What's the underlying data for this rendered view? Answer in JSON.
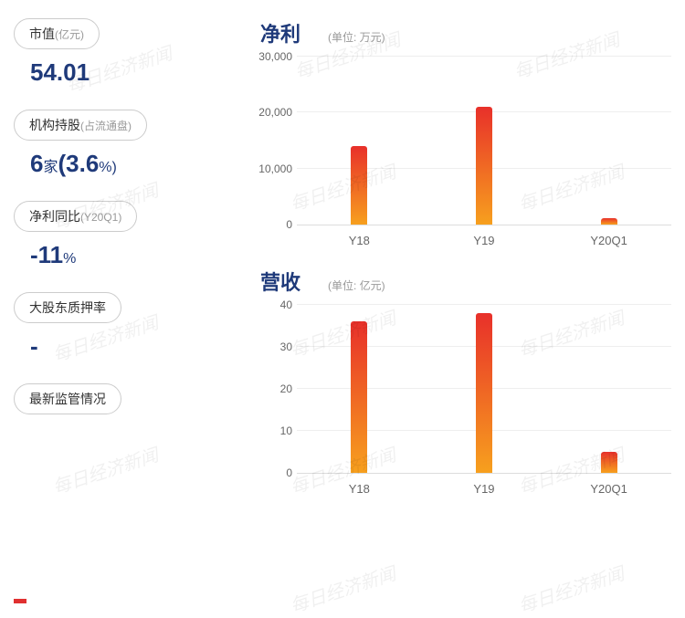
{
  "stats": {
    "market_cap": {
      "label": "市值",
      "sub": "(亿元)",
      "value": "54.01"
    },
    "holdings": {
      "label": "机构持股",
      "sub": "(占流通盘)",
      "value": "6",
      "value_unit": "家",
      "value2": "(3.6",
      "value2_unit": "%)"
    },
    "profit_yoy": {
      "label": "净利同比",
      "sub": "(Y20Q1)",
      "value": "-11",
      "unit": "%"
    },
    "pledge": {
      "label": "大股东质押率",
      "value": "-"
    },
    "regulatory": {
      "label": "最新监管情况"
    }
  },
  "chart_profit": {
    "title": "净利",
    "unit_label": "(单位: 万元)",
    "ylim_max": 30000,
    "yticks": [
      {
        "label": "0",
        "value": 0
      },
      {
        "label": "10,000",
        "value": 10000
      },
      {
        "label": "20,000",
        "value": 20000
      },
      {
        "label": "30,000",
        "value": 30000
      }
    ],
    "categories": [
      "Y18",
      "Y19",
      "Y20Q1"
    ],
    "values": [
      14000,
      21000,
      1200
    ],
    "bar_gradient_bottom": "#f7a01e",
    "bar_gradient_top": "#e8302a"
  },
  "chart_revenue": {
    "title": "营收",
    "unit_label": "(单位: 亿元)",
    "ylim_max": 40,
    "yticks": [
      {
        "label": "0",
        "value": 0
      },
      {
        "label": "10",
        "value": 10
      },
      {
        "label": "20",
        "value": 20
      },
      {
        "label": "30",
        "value": 30
      },
      {
        "label": "40",
        "value": 40
      }
    ],
    "categories": [
      "Y18",
      "Y19",
      "Y20Q1"
    ],
    "values": [
      36,
      38,
      5
    ],
    "bar_gradient_bottom": "#f7a01e",
    "bar_gradient_top": "#e8302a"
  },
  "watermark_text": "每日经济新闻"
}
